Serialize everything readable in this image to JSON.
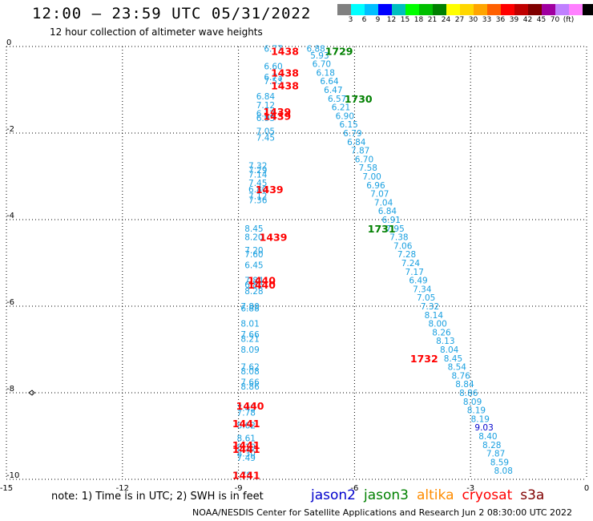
{
  "header": {
    "title": "12:00 – 23:59 UTC 05/31/2022",
    "subtitle": "12 hour collection of altimeter wave heights"
  },
  "legend": {
    "colors": [
      "#808080",
      "#00ffff",
      "#00bfff",
      "#0000ff",
      "#00bfbf",
      "#00ff00",
      "#00c000",
      "#008000",
      "#ffff00",
      "#ffd700",
      "#ffa500",
      "#ff6000",
      "#ff0000",
      "#c00000",
      "#800000",
      "#a000a0",
      "#c080ff",
      "#ff80ff",
      "#000000"
    ],
    "labels": [
      "3",
      "6",
      "9",
      "12",
      "15",
      "18",
      "21",
      "24",
      "27",
      "30",
      "33",
      "36",
      "39",
      "42",
      "45",
      "70",
      "(ft)"
    ]
  },
  "note": "note:  1) Time is in UTC;  2) SWH is in feet",
  "satellites": [
    {
      "name": "jason2",
      "color": "#0000cc"
    },
    {
      "name": "jason3",
      "color": "#008000"
    },
    {
      "name": "altika",
      "color": "#ff8c00"
    },
    {
      "name": "cryosat",
      "color": "#ff0000"
    },
    {
      "name": "s3a",
      "color": "#800000"
    }
  ],
  "footer": "NOAA/NESDIS Center for Satellite Applications and Research    Jun  2 08:30:00 UTC 2022",
  "map": {
    "lon_range": [
      -15,
      0
    ],
    "lat_range": [
      -10,
      0
    ],
    "x_ticks": [
      "-15",
      "-12",
      "-9",
      "-6",
      "-3",
      "0"
    ],
    "y_ticks": [
      "0",
      "-2",
      "-4",
      "-6",
      "-8",
      "-10"
    ],
    "time_labels": [
      {
        "lon": -6.4,
        "lat": -0.1,
        "text": "1729",
        "color": "#008000"
      },
      {
        "lon": -5.9,
        "lat": -1.2,
        "text": "1730",
        "color": "#008000"
      },
      {
        "lon": -5.3,
        "lat": -4.2,
        "text": "1731",
        "color": "#008000"
      },
      {
        "lon": -4.2,
        "lat": -7.2,
        "text": "1732",
        "color": "#ff0000"
      },
      {
        "lon": -7.8,
        "lat": -0.1,
        "text": "1438",
        "color": "#ff0000"
      },
      {
        "lon": -7.8,
        "lat": -0.6,
        "text": "1438",
        "color": "#ff0000"
      },
      {
        "lon": -7.8,
        "lat": -0.9,
        "text": "1438",
        "color": "#ff0000"
      },
      {
        "lon": -8.0,
        "lat": -1.5,
        "text": "1439",
        "color": "#ff0000"
      },
      {
        "lon": -8.0,
        "lat": -1.6,
        "text": "1439",
        "color": "#ff0000"
      },
      {
        "lon": -8.2,
        "lat": -3.3,
        "text": "1439",
        "color": "#ff0000"
      },
      {
        "lon": -8.1,
        "lat": -4.4,
        "text": "1439",
        "color": "#ff0000"
      },
      {
        "lon": -8.4,
        "lat": -5.4,
        "text": "1440",
        "color": "#ff0000"
      },
      {
        "lon": -8.4,
        "lat": -5.5,
        "text": "1440",
        "color": "#ff0000"
      },
      {
        "lon": -8.7,
        "lat": -8.3,
        "text": "1440",
        "color": "#ff0000"
      },
      {
        "lon": -8.8,
        "lat": -8.7,
        "text": "1441",
        "color": "#ff0000"
      },
      {
        "lon": -8.8,
        "lat": -9.2,
        "text": "1441",
        "color": "#ff0000"
      },
      {
        "lon": -8.8,
        "lat": -9.3,
        "text": "1441",
        "color": "#ff0000"
      },
      {
        "lon": -8.8,
        "lat": -9.9,
        "text": "1441",
        "color": "#ff0000"
      }
    ],
    "track_jason3": [
      {
        "lon": -7.0,
        "lat": -0.05,
        "v": "6.88"
      },
      {
        "lon": -6.9,
        "lat": -0.2,
        "v": "5.93"
      },
      {
        "lon": -6.85,
        "lat": -0.4,
        "v": "6.70"
      },
      {
        "lon": -6.75,
        "lat": -0.6,
        "v": "6.18"
      },
      {
        "lon": -6.65,
        "lat": -0.8,
        "v": "6.64"
      },
      {
        "lon": -6.55,
        "lat": -1.0,
        "v": "6.47"
      },
      {
        "lon": -6.45,
        "lat": -1.2,
        "v": "6.57"
      },
      {
        "lon": -6.35,
        "lat": -1.4,
        "v": "6.21"
      },
      {
        "lon": -6.25,
        "lat": -1.6,
        "v": "6.90"
      },
      {
        "lon": -6.15,
        "lat": -1.8,
        "v": "6.15"
      },
      {
        "lon": -6.05,
        "lat": -2.0,
        "v": "6.79"
      },
      {
        "lon": -5.95,
        "lat": -2.2,
        "v": "6.84"
      },
      {
        "lon": -5.85,
        "lat": -2.4,
        "v": "7.87"
      },
      {
        "lon": -5.75,
        "lat": -2.6,
        "v": "6.70"
      },
      {
        "lon": -5.65,
        "lat": -2.8,
        "v": "7.58"
      },
      {
        "lon": -5.55,
        "lat": -3.0,
        "v": "7.00"
      },
      {
        "lon": -5.45,
        "lat": -3.2,
        "v": "6.96"
      },
      {
        "lon": -5.35,
        "lat": -3.4,
        "v": "7.07"
      },
      {
        "lon": -5.25,
        "lat": -3.6,
        "v": "7.04"
      },
      {
        "lon": -5.15,
        "lat": -3.8,
        "v": "6.84"
      },
      {
        "lon": -5.05,
        "lat": -4.0,
        "v": "6.91"
      },
      {
        "lon": -4.95,
        "lat": -4.2,
        "v": "7.95"
      },
      {
        "lon": -4.85,
        "lat": -4.4,
        "v": "7.38"
      },
      {
        "lon": -4.75,
        "lat": -4.6,
        "v": "7.06"
      },
      {
        "lon": -4.65,
        "lat": -4.8,
        "v": "7.28"
      },
      {
        "lon": -4.55,
        "lat": -5.0,
        "v": "7.24"
      },
      {
        "lon": -4.45,
        "lat": -5.2,
        "v": "7.17"
      },
      {
        "lon": -4.35,
        "lat": -5.4,
        "v": "6.49"
      },
      {
        "lon": -4.25,
        "lat": -5.6,
        "v": "7.34"
      },
      {
        "lon": -4.15,
        "lat": -5.8,
        "v": "7.05"
      },
      {
        "lon": -4.05,
        "lat": -6.0,
        "v": "7.32"
      },
      {
        "lon": -3.95,
        "lat": -6.2,
        "v": "8.14"
      },
      {
        "lon": -3.85,
        "lat": -6.4,
        "v": "8.00"
      },
      {
        "lon": -3.75,
        "lat": -6.6,
        "v": "8.26"
      },
      {
        "lon": -3.65,
        "lat": -6.8,
        "v": "8.13"
      },
      {
        "lon": -3.55,
        "lat": -7.0,
        "v": "8.04"
      },
      {
        "lon": -3.45,
        "lat": -7.2,
        "v": "8.45"
      },
      {
        "lon": -3.35,
        "lat": -7.4,
        "v": "8.54"
      },
      {
        "lon": -3.25,
        "lat": -7.6,
        "v": "8.76"
      },
      {
        "lon": -3.15,
        "lat": -7.8,
        "v": "8.84"
      },
      {
        "lon": -3.05,
        "lat": -8.0,
        "v": "8.86"
      },
      {
        "lon": -2.95,
        "lat": -8.2,
        "v": "8.09"
      },
      {
        "lon": -2.85,
        "lat": -8.4,
        "v": "8.19"
      },
      {
        "lon": -2.75,
        "lat": -8.6,
        "v": "8.19"
      },
      {
        "lon": -2.65,
        "lat": -8.8,
        "v": "9.03",
        "color": "#0000cc"
      },
      {
        "lon": -2.55,
        "lat": -9.0,
        "v": "8.40"
      },
      {
        "lon": -2.45,
        "lat": -9.2,
        "v": "8.28"
      },
      {
        "lon": -2.35,
        "lat": -9.4,
        "v": "7.87"
      },
      {
        "lon": -2.25,
        "lat": -9.6,
        "v": "8.59"
      },
      {
        "lon": -2.15,
        "lat": -9.8,
        "v": "8.08"
      }
    ],
    "track_cryosat": [
      {
        "lon": -8.1,
        "lat": -0.05,
        "v": "6.77"
      },
      {
        "lon": -8.1,
        "lat": -0.45,
        "v": "6.60"
      },
      {
        "lon": -8.1,
        "lat": -0.7,
        "v": "6.73"
      },
      {
        "lon": -8.1,
        "lat": -0.8,
        "v": "7.53"
      },
      {
        "lon": -8.3,
        "lat": -1.15,
        "v": "6.84"
      },
      {
        "lon": -8.3,
        "lat": -1.35,
        "v": "7.12"
      },
      {
        "lon": -8.3,
        "lat": -1.55,
        "v": "6.12"
      },
      {
        "lon": -8.3,
        "lat": -1.65,
        "v": "6.93"
      },
      {
        "lon": -8.3,
        "lat": -1.95,
        "v": "7.05"
      },
      {
        "lon": -8.3,
        "lat": -2.1,
        "v": "7.45"
      },
      {
        "lon": -8.5,
        "lat": -2.75,
        "v": "7.32"
      },
      {
        "lon": -8.5,
        "lat": -2.85,
        "v": "7.29"
      },
      {
        "lon": -8.5,
        "lat": -2.95,
        "v": "7.14"
      },
      {
        "lon": -8.5,
        "lat": -3.15,
        "v": "7.45"
      },
      {
        "lon": -8.5,
        "lat": -3.3,
        "v": "6.80"
      },
      {
        "lon": -8.5,
        "lat": -3.45,
        "v": "7.12"
      },
      {
        "lon": -8.5,
        "lat": -3.55,
        "v": "7.36"
      },
      {
        "lon": -8.6,
        "lat": -4.2,
        "v": "8.45"
      },
      {
        "lon": -8.6,
        "lat": -4.4,
        "v": "8.20"
      },
      {
        "lon": -8.6,
        "lat": -4.7,
        "v": "7.20"
      },
      {
        "lon": -8.6,
        "lat": -4.8,
        "v": "7.60"
      },
      {
        "lon": -8.6,
        "lat": -5.05,
        "v": "6.45"
      },
      {
        "lon": -8.6,
        "lat": -5.4,
        "v": "7.84"
      },
      {
        "lon": -8.6,
        "lat": -5.5,
        "v": "6.86"
      },
      {
        "lon": -8.6,
        "lat": -5.65,
        "v": "8.28"
      },
      {
        "lon": -8.7,
        "lat": -6.0,
        "v": "7.80"
      },
      {
        "lon": -8.7,
        "lat": -6.05,
        "v": "6.88"
      },
      {
        "lon": -8.7,
        "lat": -6.4,
        "v": "8.01"
      },
      {
        "lon": -8.7,
        "lat": -6.65,
        "v": "7.66"
      },
      {
        "lon": -8.7,
        "lat": -6.75,
        "v": "8.21"
      },
      {
        "lon": -8.7,
        "lat": -7.0,
        "v": "8.09"
      },
      {
        "lon": -8.7,
        "lat": -7.4,
        "v": "7.62"
      },
      {
        "lon": -8.7,
        "lat": -7.5,
        "v": "8.08"
      },
      {
        "lon": -8.7,
        "lat": -7.75,
        "v": "7.66"
      },
      {
        "lon": -8.7,
        "lat": -7.85,
        "v": "8.86"
      },
      {
        "lon": -8.8,
        "lat": -8.35,
        "v": "7.45"
      },
      {
        "lon": -8.8,
        "lat": -8.45,
        "v": "7.78"
      },
      {
        "lon": -8.8,
        "lat": -8.75,
        "v": "8.62"
      },
      {
        "lon": -8.8,
        "lat": -9.05,
        "v": "8.61"
      },
      {
        "lon": -8.8,
        "lat": -9.25,
        "v": "8.19"
      },
      {
        "lon": -8.8,
        "lat": -9.4,
        "v": "8.30"
      },
      {
        "lon": -8.8,
        "lat": -9.5,
        "v": "7.49"
      },
      {
        "lon": -8.9,
        "lat": -9.9,
        "v": "7.78"
      }
    ]
  }
}
